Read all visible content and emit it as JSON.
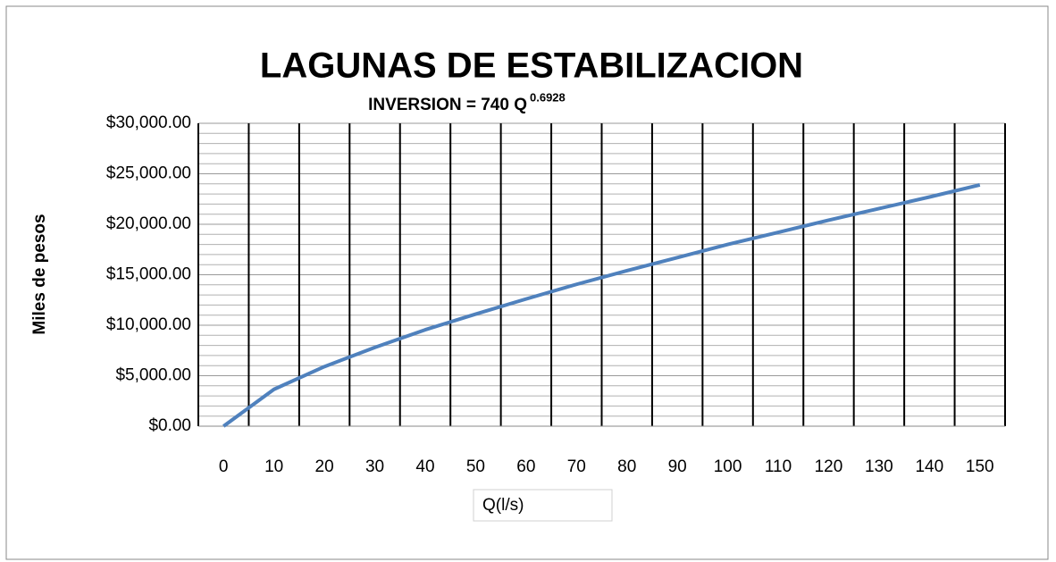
{
  "chart_data": {
    "type": "line",
    "title": "LAGUNAS DE ESTABILIZACION",
    "subtitle": "INVERSION = 740 Q",
    "subtitle_superscript": "0.6928",
    "y_label": "Miles de pesos",
    "x_label": "Q(l/s)",
    "categories": [
      "0",
      "10",
      "20",
      "30",
      "40",
      "50",
      "60",
      "70",
      "80",
      "90",
      "100",
      "110",
      "120",
      "130",
      "140",
      "150"
    ],
    "series": [
      {
        "name": "INVERSION",
        "color": "#4f81bd",
        "values": [
          0,
          3650,
          5900,
          7800,
          9550,
          11100,
          12600,
          14050,
          15400,
          16700,
          18000,
          19200,
          20400,
          21550,
          22700,
          23900
        ]
      }
    ],
    "ylim": [
      0,
      30000
    ],
    "yticks": [
      {
        "value": 0,
        "label": "$0.00"
      },
      {
        "value": 5000,
        "label": "$5,000.00"
      },
      {
        "value": 10000,
        "label": "$10,000.00"
      },
      {
        "value": 15000,
        "label": "$15,000.00"
      },
      {
        "value": 20000,
        "label": "$20,000.00"
      },
      {
        "value": 25000,
        "label": "$25,000.00"
      },
      {
        "value": 30000,
        "label": "$30,000.00"
      }
    ],
    "grid": true
  }
}
